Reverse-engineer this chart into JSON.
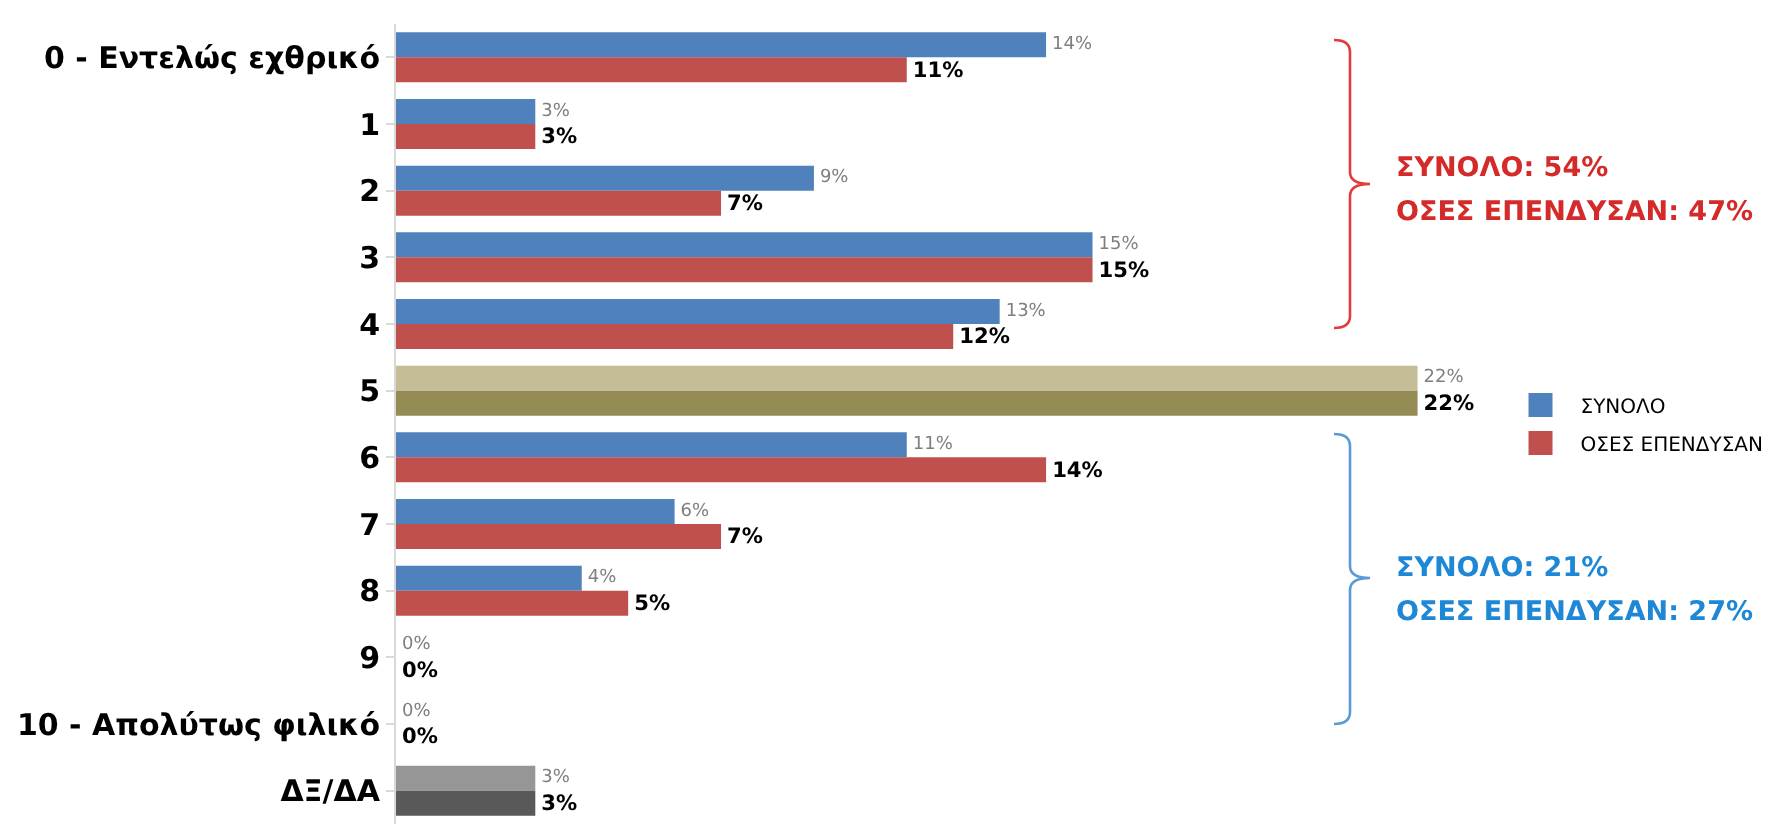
{
  "chart_data": {
    "type": "bar",
    "orientation": "horizontal",
    "categories": [
      "0 - Εντελώς εχθρικό",
      "1",
      "2",
      "3",
      "4",
      "5",
      "6",
      "7",
      "8",
      "9",
      "10 - Απολύτως φιλικό",
      "ΔΞ/ΔΑ"
    ],
    "series": [
      {
        "name": "ΣΥΝΟΛΟ",
        "color": "#4f81bd",
        "colors": [
          null,
          null,
          null,
          null,
          null,
          "#c4bd97",
          null,
          null,
          null,
          null,
          null,
          "#969696"
        ],
        "values": [
          14,
          3,
          9,
          15,
          13,
          22,
          11,
          6,
          4,
          0,
          0,
          3
        ],
        "value_labels": [
          "14%",
          "3%",
          "9%",
          "15%",
          "13%",
          "22%",
          "11%",
          "6%",
          "4%",
          "0%",
          "0%",
          "3%"
        ]
      },
      {
        "name": "ΟΣΕΣ ΕΠΕΝΔΥΣΑΝ",
        "color": "#c0504d",
        "colors": [
          null,
          null,
          null,
          null,
          null,
          "#948a54",
          null,
          null,
          null,
          null,
          null,
          "#595959"
        ],
        "values": [
          11,
          3,
          7,
          15,
          12,
          22,
          14,
          7,
          5,
          0,
          0,
          3
        ],
        "value_labels": [
          "11%",
          "3%",
          "7%",
          "15%",
          "12%",
          "22%",
          "14%",
          "7%",
          "5%",
          "0%",
          "0%",
          "3%"
        ]
      }
    ],
    "annotations": [
      "ΣΥΝΟΛΟ: 54%",
      "ΟΣΕΣ ΕΠΕΝΔΥΣΑΝ: 47%",
      "ΣΥΝΟΛΟ: 21%",
      "ΟΣΕΣ ΕΠΕΝΔΥΣΑΝ: 27%"
    ],
    "legend": "right"
  }
}
